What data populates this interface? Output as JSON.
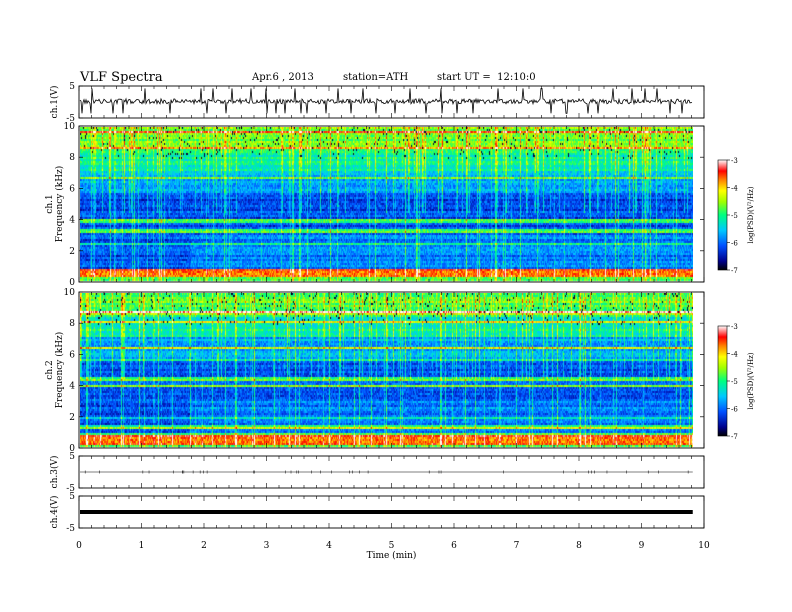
{
  "header": {
    "title": "VLF Spectra",
    "date": "Apr.6 , 2013",
    "station": "station=ATH",
    "start": "start UT =  12:10:0"
  },
  "chart_data": [
    {
      "type": "line",
      "panel": "ch1-waveform",
      "ylabel": "ch.1(V)",
      "ylim": [
        -5,
        5
      ],
      "yticks": [
        "5",
        "-5"
      ],
      "baseline": 0.2,
      "spikes_x_min": [
        0.05,
        0.2,
        0.55,
        0.7,
        1.05,
        1.45,
        1.95,
        2.05,
        2.15,
        2.35,
        2.45,
        2.75,
        3.0,
        3.15,
        3.3,
        3.45,
        3.55,
        3.65,
        3.95,
        4.15,
        4.35,
        4.55,
        4.75,
        5.05,
        5.3,
        5.55,
        5.8,
        6.05,
        6.3,
        6.7,
        7.1,
        7.4,
        7.55,
        7.8,
        8.15,
        8.3,
        8.55,
        8.85,
        9.05,
        9.25,
        9.45,
        9.65
      ]
    },
    {
      "type": "heatmap",
      "panel": "ch1-spectrogram",
      "ylabel": "ch.1\nFrequency (kHz)",
      "ylim": [
        0,
        10
      ],
      "yticks": [
        "0",
        "2",
        "4",
        "6",
        "8",
        "10"
      ],
      "colorbar_label": "log(PSD)(V²/Hz)",
      "colorbar_ticks": [
        "-3",
        "-4",
        "-5",
        "-6",
        "-7"
      ],
      "clim": [
        -7,
        -3
      ]
    },
    {
      "type": "heatmap",
      "panel": "ch2-spectrogram",
      "ylabel": "ch.2\nFrequency (kHz)",
      "ylim": [
        0,
        10
      ],
      "yticks": [
        "0",
        "2",
        "4",
        "6",
        "8",
        "10"
      ],
      "colorbar_label": "log(PSD)(V²/Hz)",
      "colorbar_ticks": [
        "-3",
        "-4",
        "-5",
        "-6",
        "-7"
      ],
      "clim": [
        -7,
        -3
      ]
    },
    {
      "type": "line",
      "panel": "ch3-waveform",
      "ylabel": "ch.3(V)",
      "ylim": [
        -5,
        5
      ],
      "yticks": [
        "5",
        "-5"
      ],
      "baseline": 0.0
    },
    {
      "type": "line",
      "panel": "ch4-waveform",
      "ylabel": "ch.4(V)",
      "ylim": [
        -5,
        5
      ],
      "yticks": [
        "5",
        "-5"
      ],
      "baseline": 0.0
    }
  ],
  "x_axis": {
    "label": "Time (min)",
    "xlim": [
      0,
      10
    ],
    "data_end": 9.82,
    "ticks": [
      "0",
      "1",
      "2",
      "3",
      "4",
      "5",
      "6",
      "7",
      "8",
      "9",
      "10"
    ]
  },
  "colors": {
    "frame": "#000000",
    "trace": "#000000"
  }
}
